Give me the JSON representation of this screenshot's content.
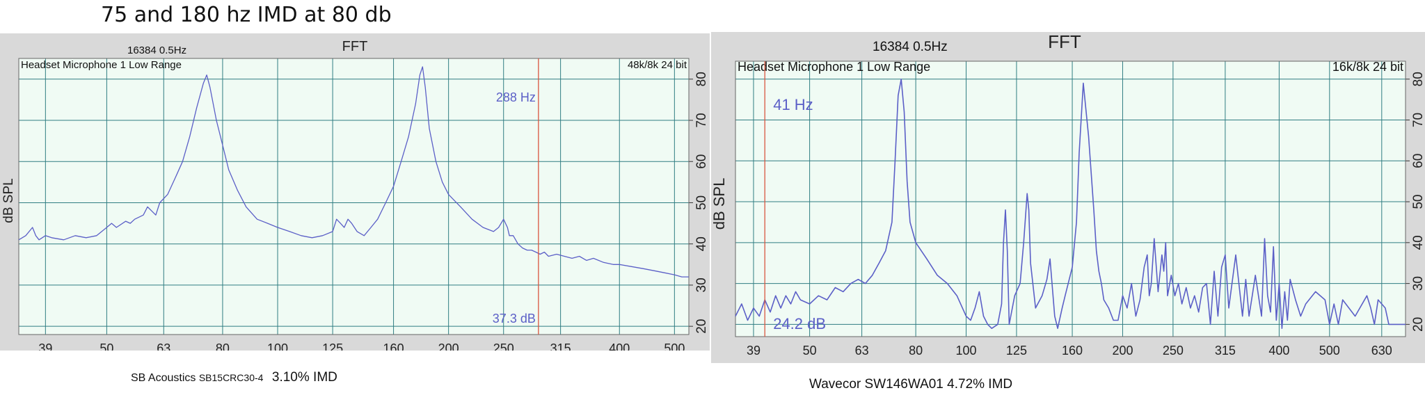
{
  "page": {
    "title": "75 and 180 hz IMD at 80 db"
  },
  "colors": {
    "plot_bg": "#f0fbf4",
    "grid": "#2f7d82",
    "trace": "#5b5fc7",
    "cursor": "#d9553f",
    "readout": "#5b5fc7",
    "panel": "#d9d9d9"
  },
  "captions": {
    "left": {
      "brand": "SB Acoustics",
      "model": "SB15CRC30-4",
      "imd": "3.10% IMD"
    },
    "right": {
      "text": "Wavecor SW146WA01 4.72% IMD"
    }
  },
  "chart_data": [
    {
      "type": "line",
      "title": "FFT",
      "header_left": "16384  0.5Hz",
      "source": "Headset Microphone 1 Low Range",
      "format": "48k/8k 24 bit",
      "ylabel": "dB SPL",
      "xscale": "log",
      "xlim": [
        35,
        530
      ],
      "ylim": [
        18,
        83
      ],
      "x_ticks": [
        "39",
        "50",
        "63",
        "80",
        "100",
        "125",
        "160",
        "200",
        "250",
        "315",
        "400",
        "500"
      ],
      "y_ticks": [
        "20",
        "30",
        "40",
        "50",
        "60",
        "70",
        "80"
      ],
      "cursor": {
        "freq": 288,
        "freq_label": "288 Hz",
        "db_label": "37.3 dB"
      },
      "grid": true,
      "series": [
        {
          "x": [
            35,
            36,
            37,
            37.5,
            38,
            39,
            40,
            42,
            44,
            46,
            48,
            50,
            51,
            52,
            54,
            55,
            56,
            58,
            59,
            60,
            61,
            62,
            64,
            66,
            68,
            70,
            72,
            74,
            75,
            76,
            78,
            80,
            82,
            85,
            88,
            92,
            96,
            100,
            105,
            110,
            115,
            120,
            125,
            127,
            129,
            131,
            133,
            135,
            138,
            142,
            146,
            150,
            155,
            160,
            165,
            170,
            175,
            178,
            180,
            182,
            185,
            190,
            195,
            200,
            210,
            220,
            230,
            240,
            245,
            250,
            252,
            254,
            256,
            260,
            265,
            270,
            275,
            280,
            285,
            290,
            295,
            300,
            310,
            320,
            330,
            340,
            350,
            360,
            375,
            390,
            400,
            420,
            440,
            460,
            480,
            500,
            515,
            530
          ],
          "y": [
            41,
            42,
            44,
            42,
            41,
            42,
            41.5,
            41,
            42,
            41.5,
            42,
            44,
            45,
            44,
            45.5,
            45,
            46,
            47,
            49,
            48,
            47,
            50,
            52,
            56,
            60,
            66,
            73,
            79,
            81,
            78,
            70,
            64,
            58,
            53,
            49,
            46,
            45,
            44,
            43,
            42,
            41.5,
            42,
            43,
            46,
            45,
            44,
            46,
            45,
            43,
            42,
            44,
            46,
            50,
            54,
            60,
            66,
            74,
            81,
            83,
            78,
            68,
            60,
            55,
            52,
            49,
            46,
            44,
            43,
            44,
            46,
            45,
            44,
            42,
            42,
            40,
            39,
            38.5,
            38.5,
            38,
            37.5,
            38,
            37,
            37.5,
            37,
            36.5,
            37,
            36,
            36.5,
            35.5,
            35,
            35,
            34.5,
            34,
            33.5,
            33,
            32.5,
            32,
            32
          ]
        }
      ]
    },
    {
      "type": "line",
      "title": "FFT",
      "header_left": "16384  0.5Hz",
      "source": "Headset Microphone 1 Low Range",
      "format": "16k/8k 24 bit",
      "ylabel": "dB SPL",
      "xscale": "log",
      "xlim": [
        36,
        700
      ],
      "ylim": [
        17,
        82
      ],
      "x_ticks": [
        "39",
        "50",
        "63",
        "80",
        "100",
        "125",
        "160",
        "200",
        "250",
        "315",
        "400",
        "500",
        "630"
      ],
      "y_ticks": [
        "20",
        "30",
        "40",
        "50",
        "60",
        "70",
        "80"
      ],
      "cursor": {
        "freq": 41,
        "freq_label": "41 Hz",
        "db_label": "24.2 dB"
      },
      "grid": true,
      "series": [
        {
          "x": [
            36,
            37,
            38,
            39,
            40,
            41,
            42,
            43,
            44,
            45,
            46,
            47,
            48,
            50,
            52,
            54,
            56,
            58,
            60,
            62,
            64,
            66,
            68,
            70,
            72,
            73,
            74,
            75,
            76,
            77,
            78,
            80,
            84,
            88,
            92,
            96,
            100,
            102,
            104,
            106,
            108,
            110,
            112,
            115,
            117,
            118,
            119,
            120,
            121,
            124,
            127,
            129,
            131,
            132,
            133,
            136,
            140,
            143,
            145,
            148,
            150,
            153,
            155,
            160,
            163,
            165,
            168,
            172,
            176,
            178,
            180,
            182,
            184,
            188,
            192,
            196,
            200,
            204,
            208,
            212,
            216,
            220,
            223,
            225,
            227,
            230,
            234,
            238,
            240,
            242,
            244,
            248,
            252,
            256,
            260,
            265,
            270,
            275,
            280,
            285,
            290,
            295,
            300,
            305,
            310,
            315,
            320,
            330,
            340,
            345,
            350,
            355,
            360,
            370,
            375,
            380,
            385,
            390,
            395,
            400,
            405,
            410,
            415,
            420,
            430,
            440,
            450,
            470,
            490,
            500,
            510,
            520,
            530,
            560,
            590,
            600,
            610,
            620,
            630,
            640,
            650,
            660,
            670,
            680,
            690,
            700
          ],
          "y": [
            22,
            25,
            21,
            24,
            22,
            26,
            23,
            27,
            24,
            27,
            25,
            28,
            26,
            25,
            27,
            26,
            29,
            28,
            30,
            31,
            30,
            32,
            35,
            38,
            45,
            60,
            76,
            80,
            72,
            55,
            45,
            40,
            36,
            32,
            30,
            27,
            22,
            21,
            24,
            28,
            22,
            20,
            19,
            20,
            25,
            40,
            48,
            38,
            20,
            27,
            30,
            40,
            52,
            48,
            35,
            24,
            27,
            31,
            36,
            22,
            19,
            24,
            27,
            34,
            45,
            62,
            79,
            66,
            48,
            38,
            33,
            30,
            26,
            24,
            21,
            21,
            27,
            24,
            30,
            22,
            26,
            34,
            37,
            27,
            30,
            41,
            28,
            37,
            33,
            40,
            27,
            32,
            27,
            30,
            25,
            29,
            24,
            27,
            23,
            29,
            30,
            20,
            33,
            22,
            34,
            37,
            24,
            37,
            22,
            31,
            22,
            27,
            32,
            22,
            41,
            27,
            23,
            39,
            21,
            30,
            19,
            28,
            21,
            31,
            26,
            22,
            25,
            28,
            26,
            20,
            25,
            20,
            26,
            22,
            27,
            24,
            20,
            26,
            25,
            24,
            20,
            20,
            20,
            20,
            20,
            20
          ]
        }
      ]
    }
  ]
}
